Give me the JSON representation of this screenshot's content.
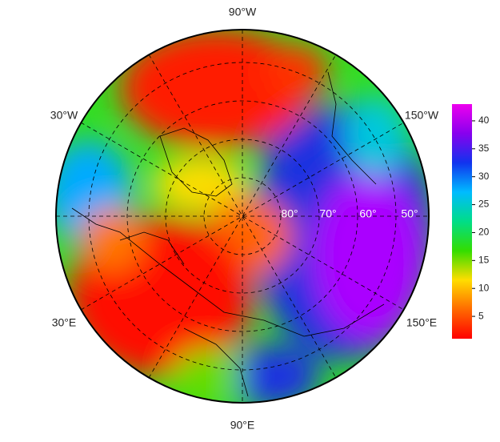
{
  "map": {
    "longitude_labels": [
      "90°W",
      "30°W",
      "150°W",
      "30°E",
      "150°E",
      "90°E"
    ],
    "latitude_labels": [
      "80°",
      "70°",
      "60°",
      "50°"
    ]
  },
  "colorbar": {
    "range": [
      1,
      43
    ],
    "ticks": [
      5,
      10,
      15,
      20,
      25,
      30,
      35,
      40
    ],
    "colors": [
      "#ff0000",
      "#ff6a00",
      "#ffdd00",
      "#33dd00",
      "#00dd88",
      "#00bbff",
      "#1133ee",
      "#8800ee",
      "#ee00ee"
    ]
  }
}
